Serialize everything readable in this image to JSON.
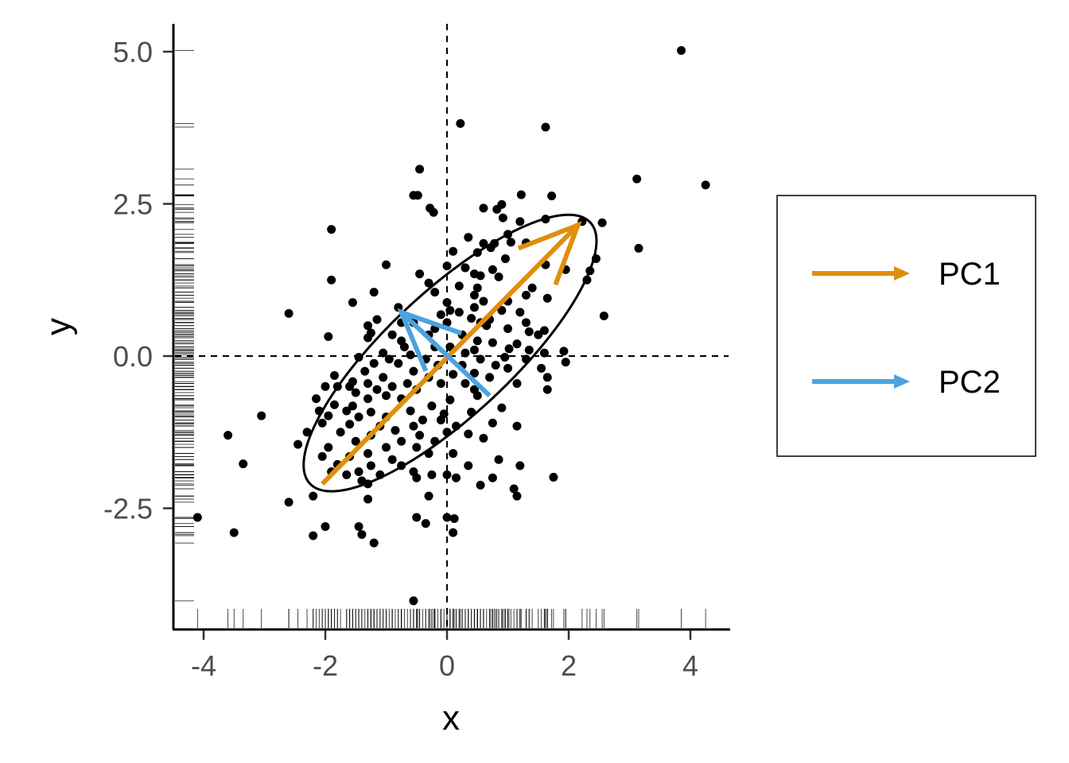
{
  "chart_data": {
    "type": "scatter",
    "title": "",
    "xlabel": "x",
    "ylabel": "y",
    "xlim": [
      -4.5,
      4.6
    ],
    "ylim": [
      -4.4,
      5.45
    ],
    "xticks": [
      -4,
      -2,
      0,
      2,
      4
    ],
    "xtick_labels": [
      "-4",
      "-2",
      "0",
      "2",
      "4"
    ],
    "yticks": [
      -2.5,
      0.0,
      2.5,
      5.0
    ],
    "ytick_labels": [
      "-2.5",
      "0.0",
      "2.5",
      "5.0"
    ],
    "grid": false,
    "reference_lines": {
      "x": 0,
      "y": 0,
      "style": "dashed"
    },
    "rug": true,
    "points": [
      [
        3.85,
        5.02
      ],
      [
        0.22,
        3.82
      ],
      [
        1.62,
        3.76
      ],
      [
        -0.45,
        3.07
      ],
      [
        3.12,
        2.91
      ],
      [
        4.25,
        2.81
      ],
      [
        -0.55,
        2.64
      ],
      [
        -0.48,
        2.64
      ],
      [
        -0.28,
        2.43
      ],
      [
        -0.22,
        2.36
      ],
      [
        0.9,
        2.49
      ],
      [
        1.22,
        2.65
      ],
      [
        1.72,
        2.63
      ],
      [
        0.6,
        2.43
      ],
      [
        0.82,
        2.41
      ],
      [
        0.92,
        2.27
      ],
      [
        1.2,
        2.21
      ],
      [
        1.62,
        2.25
      ],
      [
        2.22,
        2.21
      ],
      [
        2.55,
        2.19
      ],
      [
        -1.9,
        2.08
      ],
      [
        1.0,
        2.0
      ],
      [
        1.05,
        1.87
      ],
      [
        1.3,
        1.86
      ],
      [
        0.35,
        1.95
      ],
      [
        0.6,
        1.85
      ],
      [
        0.78,
        1.85
      ],
      [
        0.72,
        1.78
      ],
      [
        3.15,
        1.77
      ],
      [
        0.1,
        1.72
      ],
      [
        0.5,
        1.7
      ],
      [
        0.96,
        1.6
      ],
      [
        2.45,
        1.6
      ],
      [
        1.62,
        1.5
      ],
      [
        -1.0,
        1.5
      ],
      [
        0.0,
        1.48
      ],
      [
        0.3,
        1.45
      ],
      [
        0.75,
        1.42
      ],
      [
        1.95,
        1.42
      ],
      [
        2.35,
        1.4
      ],
      [
        -0.45,
        1.35
      ],
      [
        0.45,
        1.35
      ],
      [
        0.55,
        1.32
      ],
      [
        0.85,
        1.3
      ],
      [
        2.3,
        1.25
      ],
      [
        -1.9,
        1.25
      ],
      [
        -0.3,
        1.2
      ],
      [
        0.2,
        1.15
      ],
      [
        0.5,
        1.12
      ],
      [
        1.4,
        1.12
      ],
      [
        -1.2,
        1.05
      ],
      [
        -0.2,
        1.05
      ],
      [
        0.45,
        1.0
      ],
      [
        1.3,
        1.0
      ],
      [
        1.65,
        0.95
      ],
      [
        0.0,
        0.88
      ],
      [
        0.6,
        0.9
      ],
      [
        1.0,
        0.9
      ],
      [
        0.45,
        0.8
      ],
      [
        0.9,
        0.75
      ],
      [
        -1.55,
        0.88
      ],
      [
        -0.8,
        0.8
      ],
      [
        0.05,
        0.75
      ],
      [
        -0.1,
        0.68
      ],
      [
        0.2,
        0.72
      ],
      [
        1.2,
        0.72
      ],
      [
        -2.6,
        0.7
      ],
      [
        0.4,
        0.62
      ],
      [
        0.7,
        0.6
      ],
      [
        1.3,
        0.55
      ],
      [
        2.58,
        0.66
      ],
      [
        -1.15,
        0.6
      ],
      [
        -0.75,
        0.55
      ],
      [
        -0.55,
        0.55
      ],
      [
        0.0,
        0.55
      ],
      [
        0.65,
        0.5
      ],
      [
        0.55,
        0.55
      ],
      [
        -1.3,
        0.5
      ],
      [
        -0.2,
        0.45
      ],
      [
        1.0,
        0.45
      ],
      [
        1.35,
        0.4
      ],
      [
        1.6,
        0.42
      ],
      [
        -1.25,
        0.38
      ],
      [
        -0.9,
        0.35
      ],
      [
        -0.3,
        0.35
      ],
      [
        0.25,
        0.35
      ],
      [
        1.5,
        0.35
      ],
      [
        -1.95,
        0.32
      ],
      [
        -1.3,
        0.3
      ],
      [
        -0.75,
        0.25
      ],
      [
        0.5,
        0.25
      ],
      [
        0.75,
        0.22
      ],
      [
        1.15,
        0.2
      ],
      [
        -0.7,
        0.15
      ],
      [
        -0.2,
        0.15
      ],
      [
        0.05,
        0.15
      ],
      [
        0.45,
        0.1
      ],
      [
        1.02,
        0.12
      ],
      [
        1.35,
        0.1
      ],
      [
        -1.05,
        0.05
      ],
      [
        -0.6,
        0.02
      ],
      [
        0.3,
        0.05
      ],
      [
        1.6,
        0.05
      ],
      [
        1.92,
        0.08
      ],
      [
        -1.45,
        -0.02
      ],
      [
        -0.95,
        -0.05
      ],
      [
        -0.35,
        -0.05
      ],
      [
        0.55,
        -0.05
      ],
      [
        0.95,
        -0.02
      ],
      [
        1.3,
        -0.05
      ],
      [
        1.95,
        -0.1
      ],
      [
        -1.2,
        -0.12
      ],
      [
        -0.8,
        -0.12
      ],
      [
        -0.15,
        -0.15
      ],
      [
        0.25,
        -0.15
      ],
      [
        0.8,
        -0.15
      ],
      [
        1.0,
        -0.2
      ],
      [
        1.55,
        -0.2
      ],
      [
        -1.35,
        -0.25
      ],
      [
        -0.55,
        -0.25
      ],
      [
        0.1,
        -0.3
      ],
      [
        0.45,
        -0.28
      ],
      [
        1.65,
        -0.35
      ],
      [
        -1.85,
        -0.32
      ],
      [
        -1.05,
        -0.35
      ],
      [
        -0.3,
        -0.35
      ],
      [
        0.7,
        -0.35
      ],
      [
        -1.55,
        -0.42
      ],
      [
        -1.3,
        -0.45
      ],
      [
        -0.9,
        -0.5
      ],
      [
        -0.65,
        -0.45
      ],
      [
        -0.1,
        -0.45
      ],
      [
        0.3,
        -0.45
      ],
      [
        1.15,
        -0.45
      ],
      [
        -2.0,
        -0.5
      ],
      [
        -1.8,
        -0.5
      ],
      [
        -1.6,
        -0.5
      ],
      [
        -1.15,
        -0.55
      ],
      [
        -0.5,
        -0.55
      ],
      [
        0.45,
        -0.55
      ],
      [
        1.65,
        -0.55
      ],
      [
        -1.5,
        -0.6
      ],
      [
        -1.0,
        -0.65
      ],
      [
        0.5,
        -0.65
      ],
      [
        -2.15,
        -0.7
      ],
      [
        -1.3,
        -0.7
      ],
      [
        -0.75,
        -0.7
      ],
      [
        0.05,
        -0.72
      ],
      [
        -1.85,
        -0.8
      ],
      [
        -1.55,
        -0.82
      ],
      [
        -0.25,
        -0.82
      ],
      [
        0.9,
        -0.85
      ],
      [
        -2.1,
        -0.9
      ],
      [
        -1.65,
        -0.9
      ],
      [
        -1.25,
        -0.92
      ],
      [
        -0.6,
        -0.9
      ],
      [
        -0.05,
        -0.95
      ],
      [
        0.4,
        -0.92
      ],
      [
        -3.05,
        -0.98
      ],
      [
        -1.95,
        -0.98
      ],
      [
        -1.45,
        -1.0
      ],
      [
        -1.0,
        -1.0
      ],
      [
        -0.4,
        -1.05
      ],
      [
        -0.1,
        -1.05
      ],
      [
        0.75,
        -1.1
      ],
      [
        -2.05,
        -1.1
      ],
      [
        -1.6,
        -1.12
      ],
      [
        -1.1,
        -1.15
      ],
      [
        -0.55,
        -1.15
      ],
      [
        0.15,
        -1.15
      ],
      [
        1.15,
        -1.15
      ],
      [
        -0.85,
        -1.22
      ],
      [
        -2.3,
        -1.25
      ],
      [
        -1.75,
        -1.25
      ],
      [
        -1.25,
        -1.3
      ],
      [
        -0.45,
        -1.3
      ],
      [
        0.0,
        -1.25
      ],
      [
        0.35,
        -1.28
      ],
      [
        -3.6,
        -1.3
      ],
      [
        -1.5,
        -1.4
      ],
      [
        -0.75,
        -1.4
      ],
      [
        -0.2,
        -1.4
      ],
      [
        0.6,
        -1.35
      ],
      [
        -2.45,
        -1.45
      ],
      [
        -1.95,
        -1.5
      ],
      [
        -1.0,
        -1.5
      ],
      [
        -0.5,
        -1.5
      ],
      [
        -1.3,
        -1.6
      ],
      [
        -0.3,
        -1.6
      ],
      [
        0.1,
        -1.6
      ],
      [
        -2.05,
        -1.65
      ],
      [
        -1.6,
        -1.65
      ],
      [
        -0.9,
        -1.7
      ],
      [
        0.85,
        -1.7
      ],
      [
        -3.35,
        -1.77
      ],
      [
        -1.8,
        -1.78
      ],
      [
        -1.25,
        -1.8
      ],
      [
        -0.75,
        -1.8
      ],
      [
        0.35,
        -1.8
      ],
      [
        1.2,
        -1.8
      ],
      [
        -1.9,
        -1.9
      ],
      [
        -1.45,
        -1.9
      ],
      [
        -0.55,
        -1.9
      ],
      [
        -1.65,
        -1.95
      ],
      [
        -1.1,
        -1.95
      ],
      [
        -0.25,
        -1.95
      ],
      [
        0.0,
        -1.95
      ],
      [
        1.75,
        -1.99
      ],
      [
        -0.5,
        -2.0
      ],
      [
        0.15,
        -2.0
      ],
      [
        0.75,
        -2.0
      ],
      [
        -1.4,
        -2.05
      ],
      [
        -1.3,
        -2.1
      ],
      [
        0.55,
        -2.12
      ],
      [
        1.1,
        -2.18
      ],
      [
        -2.6,
        -2.4
      ],
      [
        -2.2,
        -2.3
      ],
      [
        -1.3,
        -2.35
      ],
      [
        -0.3,
        -2.3
      ],
      [
        1.15,
        -2.3
      ],
      [
        -4.1,
        -2.65
      ],
      [
        -0.5,
        -2.65
      ],
      [
        0.0,
        -2.65
      ],
      [
        0.12,
        -2.67
      ],
      [
        -0.35,
        -2.75
      ],
      [
        -1.45,
        -2.8
      ],
      [
        -2.0,
        -2.8
      ],
      [
        0.1,
        -2.9
      ],
      [
        -3.5,
        -2.9
      ],
      [
        -1.4,
        -2.93
      ],
      [
        -2.2,
        -2.95
      ],
      [
        -1.2,
        -3.07
      ],
      [
        -0.55,
        -4.02
      ]
    ],
    "ellipse": {
      "center": [
        0.05,
        0.05
      ],
      "semi_major": 3.15,
      "semi_minor": 1.02,
      "angle_deg": 43
    },
    "vectors": [
      {
        "name": "PC1",
        "from": [
          -2.05,
          -2.1
        ],
        "to": [
          2.15,
          2.15
        ],
        "color": "#E08E0B"
      },
      {
        "name": "PC2",
        "from": [
          0.7,
          -0.65
        ],
        "to": [
          -0.75,
          0.72
        ],
        "color": "#4CA3DD"
      }
    ],
    "legend": {
      "position": "right",
      "entries": [
        {
          "label": "PC1",
          "color": "#E08E0B"
        },
        {
          "label": "PC2",
          "color": "#4CA3DD"
        }
      ]
    }
  }
}
